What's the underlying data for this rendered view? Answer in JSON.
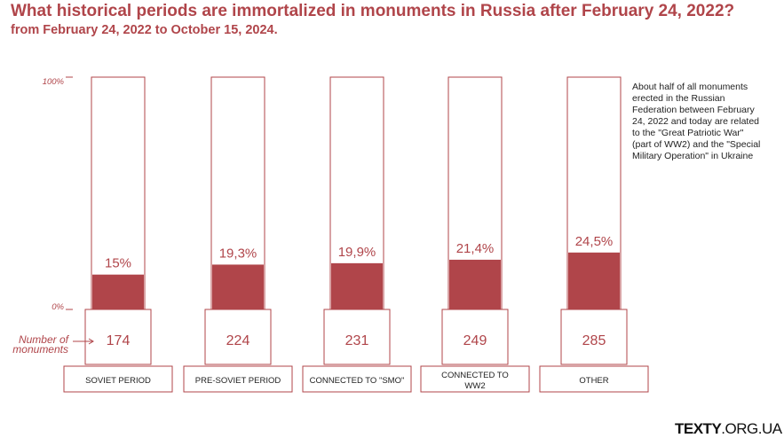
{
  "header": {
    "title": "What historical periods are immortalized in monuments in Russia after February 24, 2022?",
    "subtitle": "from February 24, 2022 to October 15, 2024."
  },
  "note": "About half of all monuments erected in the Russian Federation between February 24, 2022 and today are related to the \"Great Patriotic War\" (part of WW2) and the \"Special Military Operation\" in Ukraine",
  "brand": {
    "bold": "TEXTY",
    "thin": ".ORG.UA"
  },
  "colors": {
    "accent": "#b0454a",
    "border": "#b0454a"
  },
  "chart_data": {
    "type": "bar",
    "categories": [
      "SOVIET PERIOD",
      "PRE-SOVIET PERIOD",
      "CONNECTED TO \"SMO\"",
      "CONNECTED TO WW2",
      "OTHER"
    ],
    "category_lines": [
      [
        "SOVIET PERIOD"
      ],
      [
        "PRE-SOVIET PERIOD"
      ],
      [
        "CONNECTED TO \"SMO\""
      ],
      [
        "CONNECTED TO",
        "WW2"
      ],
      [
        "OTHER"
      ]
    ],
    "values": [
      15,
      19.3,
      19.9,
      21.4,
      24.5
    ],
    "value_labels": [
      "15%",
      "19,3%",
      "19,9%",
      "21,4%",
      "24,5%"
    ],
    "counts": [
      174,
      224,
      231,
      249,
      285
    ],
    "ylim": [
      0,
      100
    ],
    "ytick_labels": {
      "top": "100%",
      "bottom": "0%"
    },
    "count_label_lines": [
      "Number of",
      "monuments"
    ]
  }
}
